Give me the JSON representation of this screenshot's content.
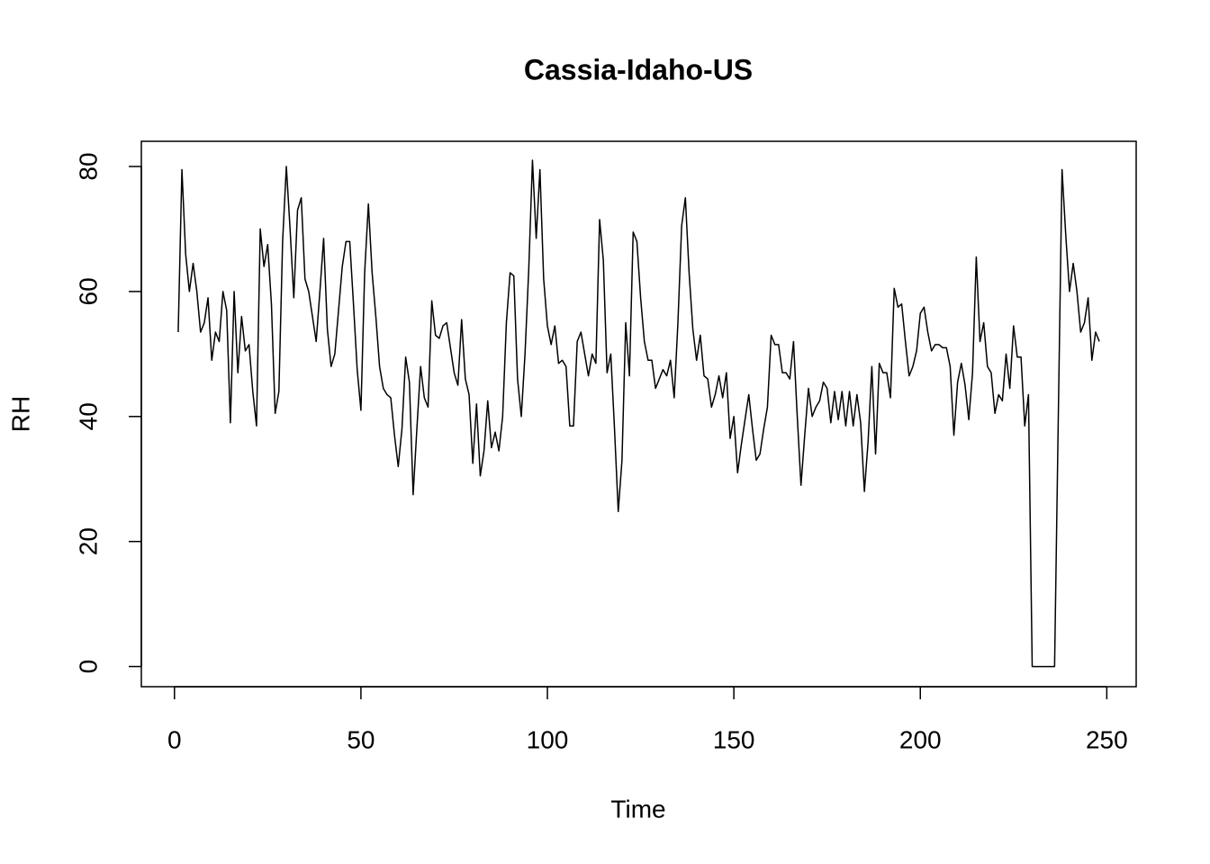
{
  "chart_data": {
    "type": "line",
    "title": "Cassia-Idaho-US",
    "x_label": "Time",
    "y_label": "RH",
    "x": [
      1,
      2,
      3,
      4,
      5,
      6,
      7,
      8,
      9,
      10,
      11,
      12,
      13,
      14,
      15,
      16,
      17,
      18,
      19,
      20,
      21,
      22,
      23,
      24,
      25,
      26,
      27,
      28,
      29,
      30,
      31,
      32,
      33,
      34,
      35,
      36,
      37,
      38,
      39,
      40,
      41,
      42,
      43,
      44,
      45,
      46,
      47,
      48,
      49,
      50,
      51,
      52,
      53,
      54,
      55,
      56,
      57,
      58,
      59,
      60,
      61,
      62,
      63,
      64,
      65,
      66,
      67,
      68,
      69,
      70,
      71,
      72,
      73,
      74,
      75,
      76,
      77,
      78,
      79,
      80,
      81,
      82,
      83,
      84,
      85,
      86,
      87,
      88,
      89,
      90,
      91,
      92,
      93,
      94,
      95,
      96,
      97,
      98,
      99,
      100,
      101,
      102,
      103,
      104,
      105,
      106,
      107,
      108,
      109,
      110,
      111,
      112,
      113,
      114,
      115,
      116,
      117,
      118,
      119,
      120,
      121,
      122,
      123,
      124,
      125,
      126,
      127,
      128,
      129,
      130,
      131,
      132,
      133,
      134,
      135,
      136,
      137,
      138,
      139,
      140,
      141,
      142,
      143,
      144,
      145,
      146,
      147,
      148,
      149,
      150,
      151,
      152,
      153,
      154,
      155,
      156,
      157,
      158,
      159,
      160,
      161,
      162,
      163,
      164,
      165,
      166,
      167,
      168,
      169,
      170,
      171,
      172,
      173,
      174,
      175,
      176,
      177,
      178,
      179,
      180,
      181,
      182,
      183,
      184,
      185,
      186,
      187,
      188,
      189,
      190,
      191,
      192,
      193,
      194,
      195,
      196,
      197,
      198,
      199,
      200,
      201,
      202,
      203,
      204,
      205,
      206,
      207,
      208,
      209,
      210,
      211,
      212,
      213,
      214,
      215,
      216,
      217,
      218,
      219,
      220,
      221,
      222,
      223,
      224,
      225,
      226,
      227,
      228,
      229,
      230,
      231,
      232,
      233,
      234,
      235,
      236,
      237,
      238,
      239,
      240,
      241,
      242,
      243,
      244,
      245,
      246,
      247,
      248
    ],
    "series": [
      {
        "name": "RH",
        "color": "#000000",
        "values": [
          53.5,
          79.5,
          66,
          60,
          64.5,
          60,
          53.5,
          55,
          59,
          49,
          53.5,
          52,
          60,
          57,
          39,
          60,
          47,
          56,
          50.5,
          51.5,
          44,
          38.5,
          70,
          64,
          67.5,
          58,
          40.5,
          44,
          68,
          80,
          70,
          59,
          73,
          75,
          62,
          60,
          56,
          52,
          60,
          68.5,
          54,
          48,
          50,
          57,
          64,
          68,
          68,
          58,
          47.5,
          41,
          63,
          74,
          63,
          56,
          48,
          44.5,
          43.5,
          43,
          37,
          32,
          38,
          49.5,
          45.5,
          27.5,
          38,
          48,
          43,
          41.5,
          58.5,
          53,
          52.5,
          54.5,
          55,
          51,
          47,
          45,
          55.5,
          46,
          43.5,
          32.5,
          42,
          30.5,
          34.5,
          42.5,
          35,
          37.5,
          34.5,
          40,
          55,
          63,
          62.5,
          46,
          40,
          50,
          63.5,
          81,
          68.5,
          79.5,
          62,
          54.5,
          51.5,
          54.5,
          48.5,
          49,
          48,
          38.5,
          38.5,
          52,
          53.5,
          50,
          46.5,
          50,
          48.5,
          71.5,
          65,
          47,
          50,
          38,
          24.8,
          33,
          55,
          46.5,
          69.5,
          68,
          59,
          52,
          49,
          49,
          44.5,
          46,
          47.5,
          46.5,
          49,
          43,
          55,
          70.5,
          75,
          63,
          54,
          49,
          53,
          46.5,
          46,
          41.5,
          43.5,
          46.5,
          43,
          47,
          36.5,
          40,
          31,
          35.5,
          39.5,
          43.5,
          38,
          33,
          34,
          38,
          41.5,
          53,
          51.5,
          51.5,
          47,
          47,
          46,
          52,
          40,
          29,
          37,
          44.5,
          40,
          41.5,
          42.5,
          45.5,
          44.5,
          39,
          44,
          39.5,
          44,
          38.5,
          44,
          38.5,
          43.5,
          39,
          28,
          36,
          48,
          34,
          48.5,
          47,
          47,
          43,
          60.5,
          57.5,
          58,
          52,
          46.5,
          48,
          50.5,
          56.5,
          57.5,
          53.5,
          50.5,
          51.5,
          51.5,
          51,
          51,
          48,
          37,
          45.5,
          48.5,
          45,
          39.5,
          47,
          65.5,
          52,
          55,
          48,
          47,
          40.5,
          43.5,
          42.5,
          50,
          44.5,
          54.5,
          49.5,
          49.5,
          38.5,
          43.5,
          0,
          0,
          0,
          0,
          0,
          0,
          0,
          40,
          79.5,
          69,
          60,
          64.5,
          60,
          53.5,
          55,
          59,
          49,
          53.5,
          52
        ]
      }
    ],
    "xlim": [
      -8.88,
      257.88
    ],
    "ylim": [
      -3.23,
      84.03
    ],
    "xticks": [
      0,
      50,
      100,
      150,
      200,
      250
    ],
    "yticks": [
      0,
      20,
      40,
      60,
      80
    ]
  }
}
